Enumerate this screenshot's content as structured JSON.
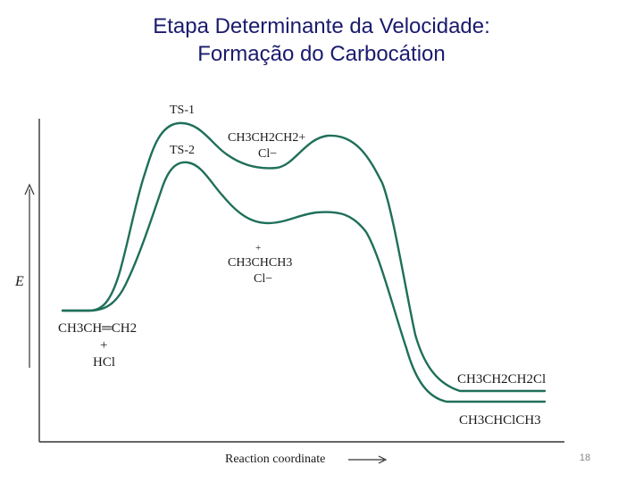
{
  "slide": {
    "title_line1": "Etapa Determinante da Velocidade:",
    "title_line2": "Formação do Carbocátion",
    "page_number": "18"
  },
  "diagram": {
    "y_axis_label": "E",
    "x_axis_label": "Reaction coordinate",
    "ts1_label": "TS-1",
    "ts2_label": "TS-2",
    "primary_carbocation": "CH3CH2CH2+",
    "primary_counterion": "Cl−",
    "secondary_charge": "+",
    "secondary_carbocation": "CH3CHCH3",
    "secondary_counterion": "Cl−",
    "reactant_alkene": "CH3CH═CH2",
    "reactant_plus": "+",
    "reactant_hcl": "HCl",
    "product_primary": "CH3CH2CH2Cl",
    "product_secondary": "CH3CHClCH3"
  },
  "colors": {
    "curve": "#1f6f5a",
    "axis": "#333333",
    "title": "#1a1a6e"
  }
}
